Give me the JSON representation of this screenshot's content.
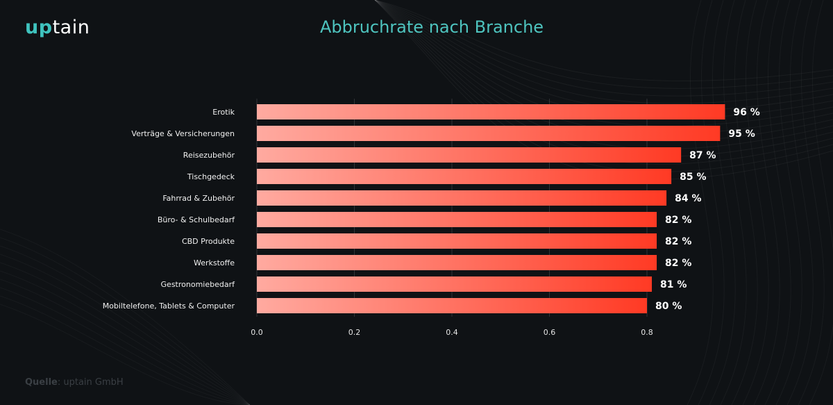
{
  "brand": {
    "logo_accent": "up",
    "logo_rest": "tain",
    "accent_color": "#3fc3be"
  },
  "title": "Abbruchrate nach Branche",
  "source": {
    "label": "Quelle",
    "text": ": uptain GmbH"
  },
  "chart_data": {
    "type": "bar",
    "orientation": "horizontal",
    "title": "Abbruchrate nach Branche",
    "xlabel": "",
    "ylabel": "",
    "xlim": [
      0,
      0.96
    ],
    "xticks": [
      "0.0",
      "0.2",
      "0.4",
      "0.6",
      "0.8"
    ],
    "grid": true,
    "categories": [
      "Erotik",
      "Verträge & Versicherungen",
      "Reisezubehör",
      "Tischgedeck",
      "Fahrrad & Zubehör",
      "Büro- & Schulbedarf",
      "CBD Produkte",
      "Werkstoffe",
      "Gestronomiebedarf",
      "Mobiltelefone, Tablets & Computer"
    ],
    "values": [
      0.96,
      0.95,
      0.87,
      0.85,
      0.84,
      0.82,
      0.82,
      0.82,
      0.81,
      0.8
    ],
    "data_labels": [
      "96 %",
      "95 %",
      "87 %",
      "85 %",
      "84 %",
      "82 %",
      "82 %",
      "82 %",
      "81 %",
      "80 %"
    ],
    "bar_color_start": "#ffaaa0",
    "bar_color_end": "#ff3a24"
  }
}
